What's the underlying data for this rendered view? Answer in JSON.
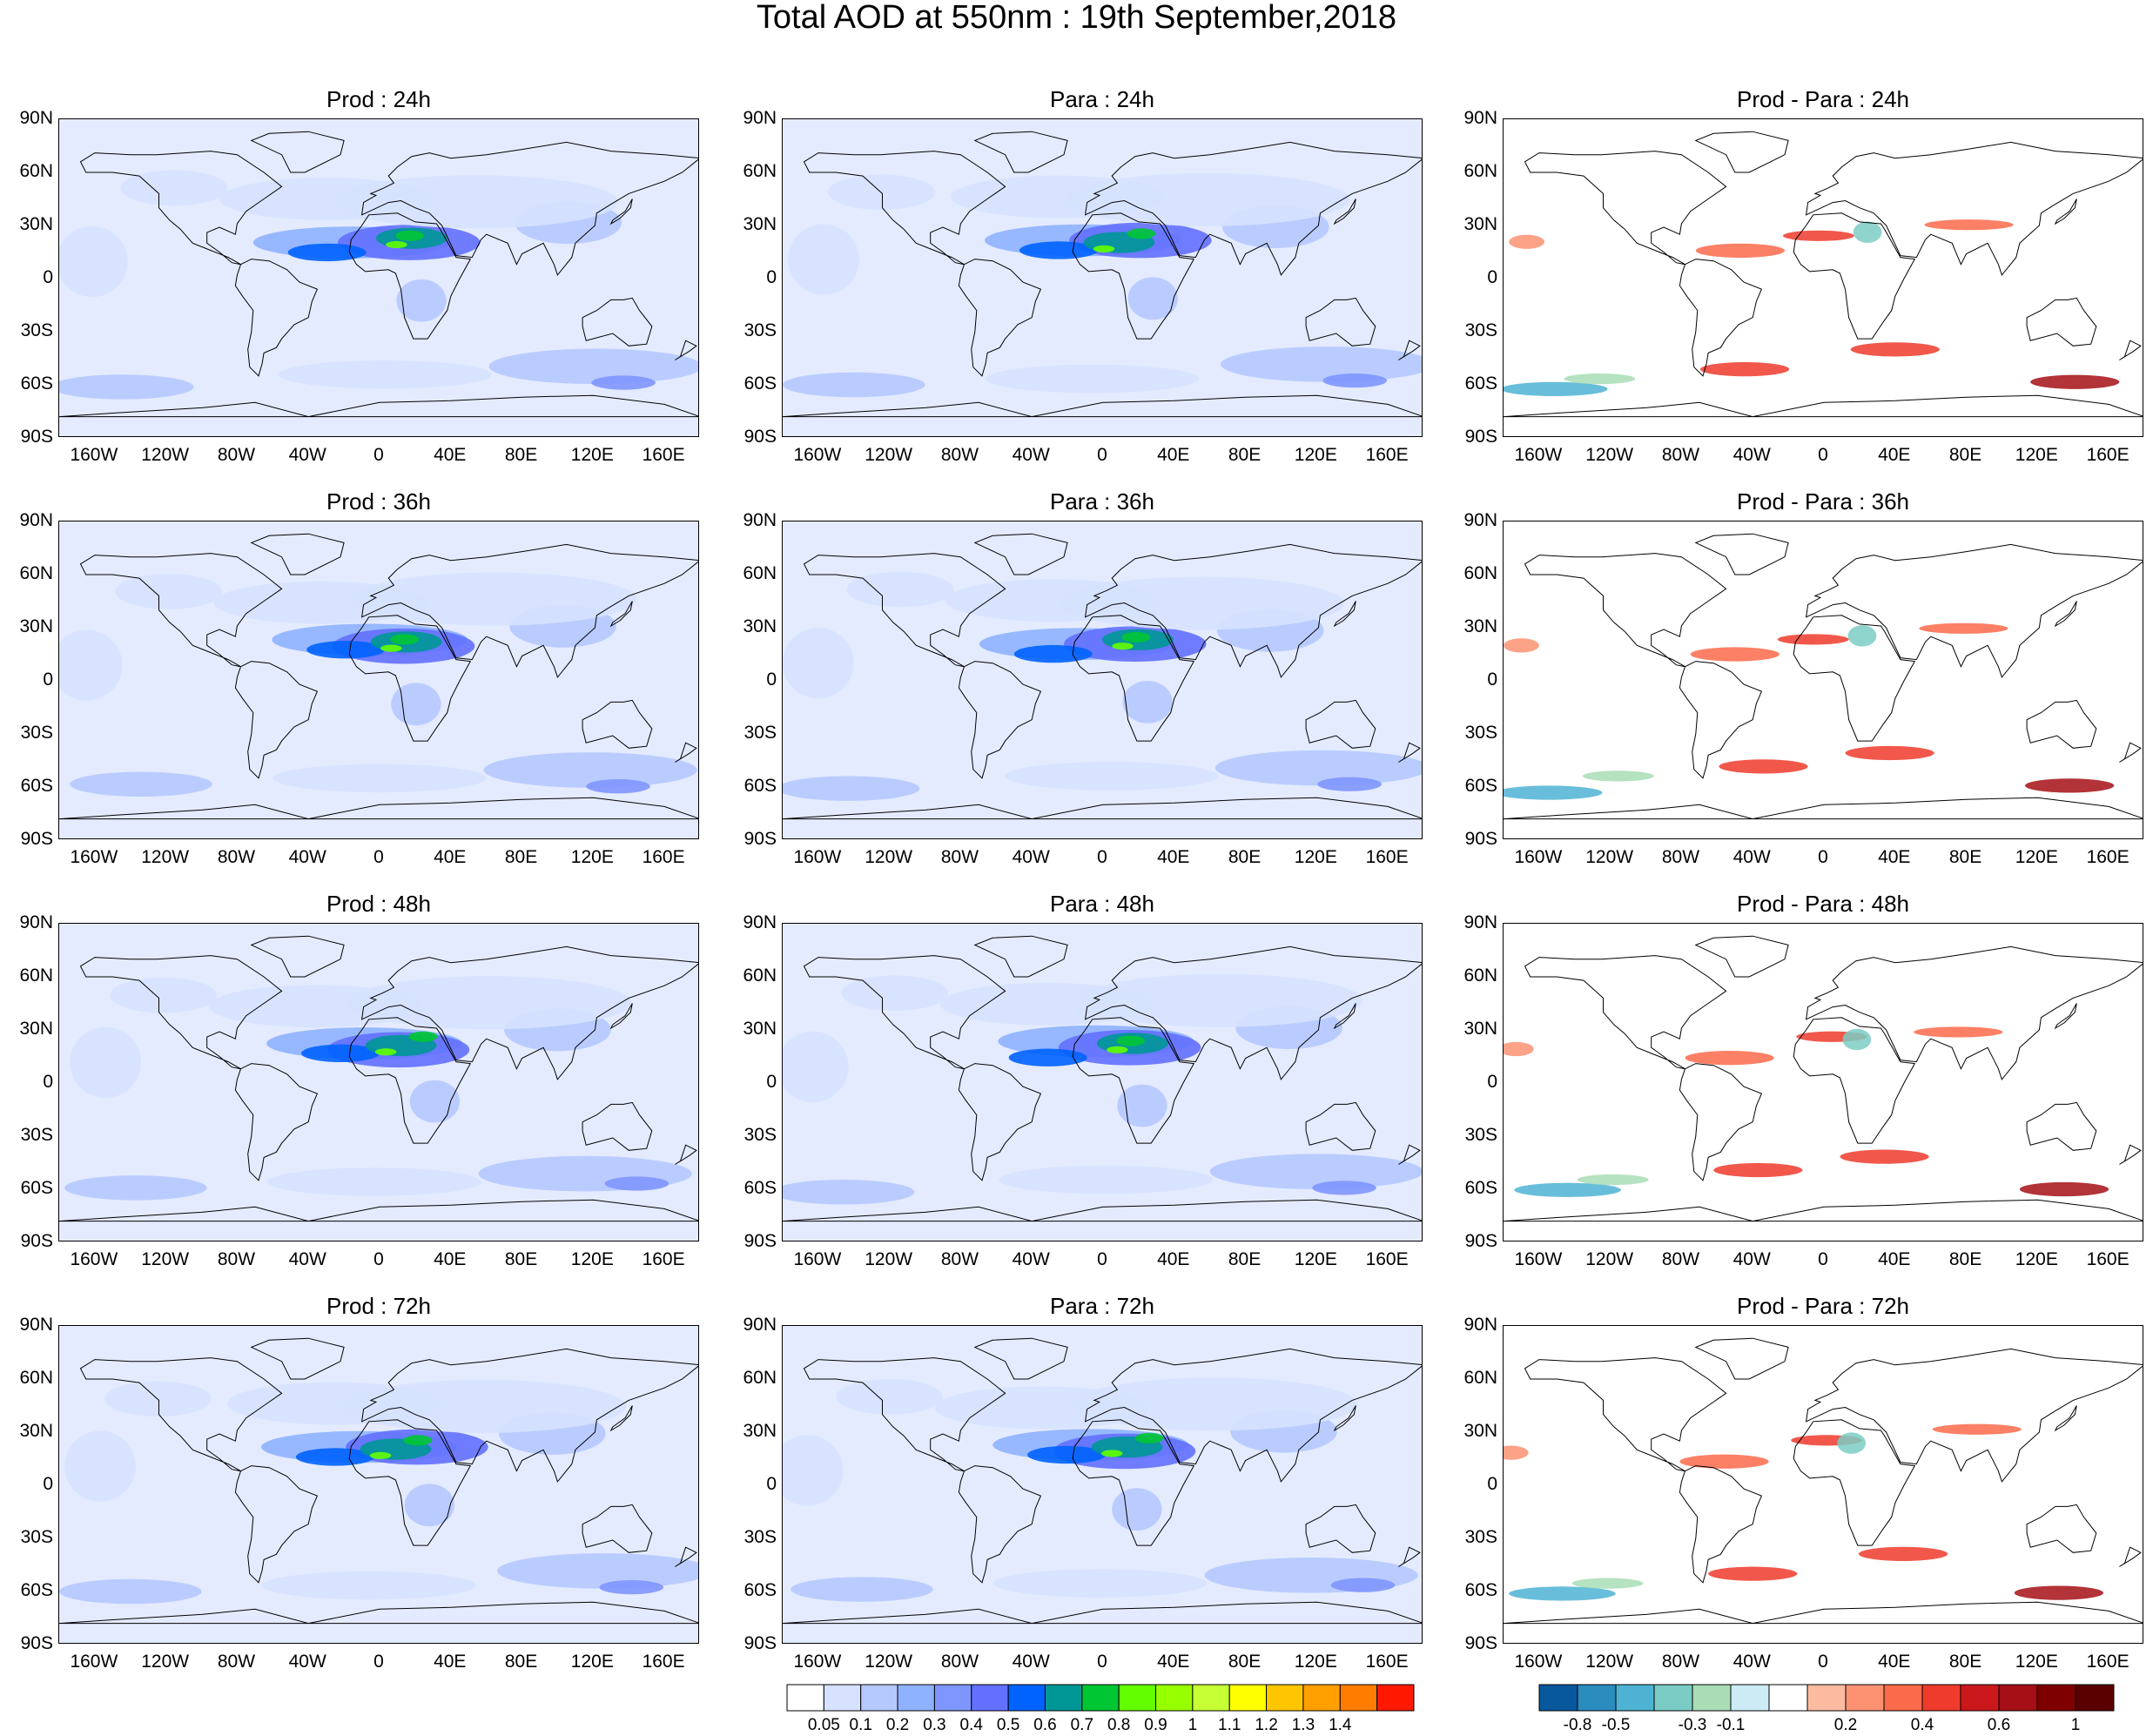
{
  "title": "Total AOD at 550nm : 19th September,2018",
  "panels": [
    {
      "id": "prod-24",
      "kind": "aod",
      "title": "Prod : 24h",
      "row": 0,
      "col": 0
    },
    {
      "id": "para-24",
      "kind": "aod",
      "title": "Para : 24h",
      "row": 0,
      "col": 1
    },
    {
      "id": "diff-24",
      "kind": "diff",
      "title": "Prod - Para : 24h",
      "row": 0,
      "col": 2
    },
    {
      "id": "prod-36",
      "kind": "aod",
      "title": "Prod : 36h",
      "row": 1,
      "col": 0
    },
    {
      "id": "para-36",
      "kind": "aod",
      "title": "Para : 36h",
      "row": 1,
      "col": 1
    },
    {
      "id": "diff-36",
      "kind": "diff",
      "title": "Prod - Para : 36h",
      "row": 1,
      "col": 2
    },
    {
      "id": "prod-48",
      "kind": "aod",
      "title": "Prod : 48h",
      "row": 2,
      "col": 0
    },
    {
      "id": "para-48",
      "kind": "aod",
      "title": "Para : 48h",
      "row": 2,
      "col": 1
    },
    {
      "id": "diff-48",
      "kind": "diff",
      "title": "Prod - Para : 48h",
      "row": 2,
      "col": 2
    },
    {
      "id": "prod-72",
      "kind": "aod",
      "title": "Prod : 72h",
      "row": 3,
      "col": 0
    },
    {
      "id": "para-72",
      "kind": "aod",
      "title": "Para : 72h",
      "row": 3,
      "col": 1
    },
    {
      "id": "diff-72",
      "kind": "diff",
      "title": "Prod - Para : 72h",
      "row": 3,
      "col": 2
    }
  ],
  "lat_labels": [
    "90N",
    "60N",
    "30N",
    "0",
    "30S",
    "60S",
    "90S"
  ],
  "lon_labels": [
    "160W",
    "120W",
    "80W",
    "40W",
    "0",
    "40E",
    "80E",
    "120E",
    "160E"
  ],
  "aod_colorbar": {
    "colors": [
      "#ffffff",
      "#d6e2ff",
      "#b5c9ff",
      "#8eb2ff",
      "#7f96ff",
      "#6370ff",
      "#0063ff",
      "#009696",
      "#00c633",
      "#63ff00",
      "#96ff00",
      "#c6ff33",
      "#ffff00",
      "#ffc600",
      "#ffa000",
      "#ff7c00",
      "#ff1900"
    ],
    "labels": [
      "0.05",
      "0.1",
      "0.2",
      "0.3",
      "0.4",
      "0.5",
      "0.6",
      "0.7",
      "0.8",
      "0.9",
      "1",
      "1.1",
      "1.2",
      "1.3",
      "1.4"
    ]
  },
  "diff_colorbar": {
    "colors": [
      "#08589e",
      "#2b8cbe",
      "#4eb3d3",
      "#7bccc4",
      "#a8ddb5",
      "#ccebf5",
      "#ffffff",
      "#fcbba1",
      "#fc9272",
      "#fb6a4a",
      "#ef3b2c",
      "#cb181d",
      "#a50f15",
      "#7f0000",
      "#5a0000"
    ],
    "labels": [
      "-0.8",
      "-0.5",
      "-0.3",
      "-0.1",
      "0.2",
      "0.4",
      "0.6",
      "1"
    ]
  }
}
